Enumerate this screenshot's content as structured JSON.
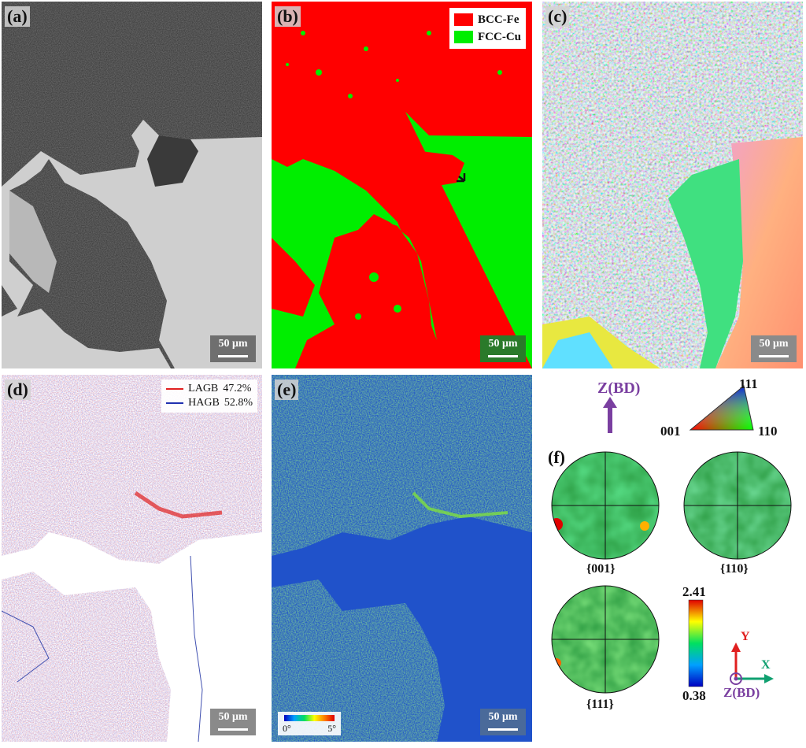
{
  "panels": {
    "a": {
      "tag": "(a)",
      "scale": "50 μm"
    },
    "b": {
      "tag": "(b)",
      "scale": "50 μm",
      "legend": [
        {
          "label": "BCC-Fe",
          "color": "#ff0000"
        },
        {
          "label": "FCC-Cu",
          "color": "#00ee00"
        }
      ]
    },
    "c": {
      "tag": "(c)",
      "scale": "50 μm"
    },
    "d": {
      "tag": "(d)",
      "scale": "50 μm",
      "legend": [
        {
          "label": "LAGB",
          "value": "47.2%",
          "color": "#e02020"
        },
        {
          "label": "HAGB",
          "value": "52.8%",
          "color": "#2030b0"
        }
      ]
    },
    "e": {
      "tag": "(e)",
      "scale": "50 μm",
      "colorbar_min": "0°",
      "colorbar_max": "5°"
    },
    "f": {
      "tag": "(f)",
      "poles": [
        "{001}",
        "{110}",
        "{111}"
      ],
      "scale_max": "2.41",
      "scale_min": "0.38",
      "axis_y": "Y",
      "axis_x": "X",
      "axis_z": "Z(BD)"
    }
  },
  "ipf_key": {
    "direction": "Z(BD)",
    "c111": "111",
    "c001": "001",
    "c110": "110"
  },
  "colors": {
    "fe": "#ff0000",
    "cu": "#00ee00",
    "z_arrow": "#7a3fa0"
  }
}
